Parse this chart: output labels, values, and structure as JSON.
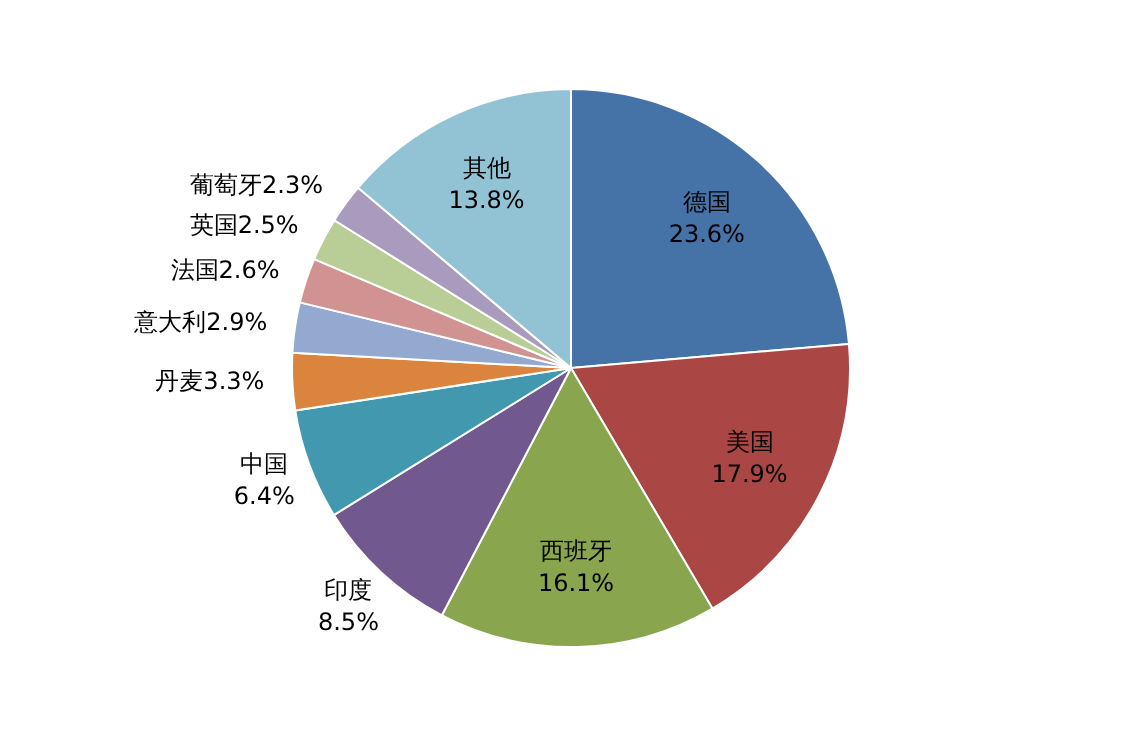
{
  "chart_data": {
    "type": "pie",
    "categories": [
      "德国",
      "美国",
      "西班牙",
      "印度",
      "中国",
      "丹麦",
      "意大利",
      "法国",
      "英国",
      "葡萄牙",
      "其他"
    ],
    "values": [
      23.6,
      17.9,
      16.1,
      8.5,
      6.4,
      3.3,
      2.9,
      2.6,
      2.5,
      2.3,
      13.8
    ],
    "value_labels": [
      "23.6%",
      "17.9%",
      "16.1%",
      "8.5%",
      "6.4%",
      "3.3%",
      "2.9%",
      "2.6%",
      "2.5%",
      "2.3%",
      "13.8%"
    ],
    "colors": [
      "#4572a7",
      "#aa4643",
      "#89a54e",
      "#71588f",
      "#4198af",
      "#db843d",
      "#93a9cf",
      "#d19392",
      "#b9cd96",
      "#a99bbd",
      "#92c3d4"
    ],
    "legend": false
  }
}
